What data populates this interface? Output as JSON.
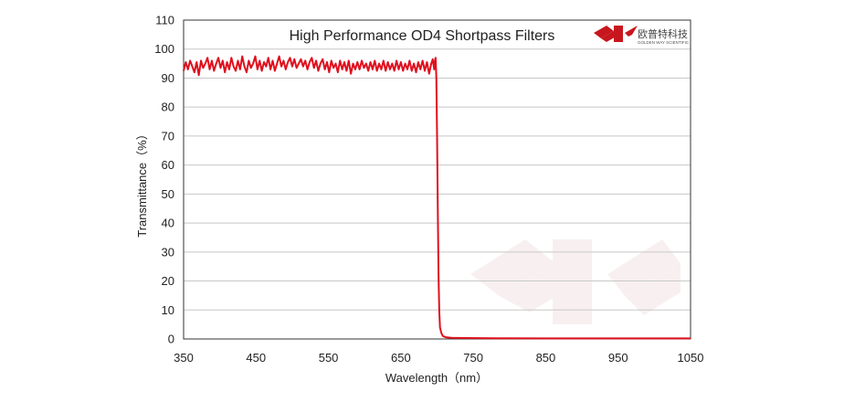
{
  "chart_data": {
    "type": "line",
    "title": "High Performance OD4 Shortpass  Filters",
    "xlabel": "Wavelength（nm）",
    "ylabel": "Transmittance（%）",
    "xlim": [
      350,
      1050
    ],
    "ylim": [
      0,
      110
    ],
    "xticks": [
      350,
      450,
      550,
      650,
      750,
      850,
      950,
      1050
    ],
    "yticks": [
      0,
      10,
      20,
      30,
      40,
      50,
      60,
      70,
      80,
      90,
      100,
      110
    ],
    "grid": true,
    "legend": "none",
    "series": [
      {
        "color": "#e0101e",
        "x": [
          350,
          353,
          356,
          359,
          362,
          365,
          368,
          371,
          374,
          377,
          380,
          383,
          386,
          389,
          392,
          395,
          398,
          401,
          404,
          407,
          410,
          413,
          416,
          419,
          422,
          425,
          428,
          431,
          434,
          437,
          440,
          443,
          446,
          449,
          452,
          455,
          458,
          461,
          464,
          467,
          470,
          473,
          476,
          479,
          482,
          485,
          488,
          491,
          494,
          497,
          500,
          503,
          506,
          509,
          512,
          515,
          518,
          521,
          524,
          527,
          530,
          533,
          536,
          539,
          542,
          545,
          548,
          551,
          554,
          557,
          560,
          563,
          566,
          569,
          572,
          575,
          578,
          581,
          584,
          587,
          590,
          593,
          596,
          599,
          602,
          605,
          608,
          611,
          614,
          617,
          620,
          623,
          626,
          629,
          632,
          635,
          638,
          641,
          644,
          647,
          650,
          653,
          656,
          659,
          662,
          665,
          668,
          671,
          674,
          677,
          680,
          683,
          686,
          689,
          692,
          694,
          696,
          697,
          698,
          699,
          700,
          701,
          702,
          703,
          704,
          706,
          708,
          712,
          720,
          740,
          780,
          850,
          950,
          1050
        ],
        "values": [
          92.5,
          95.5,
          93,
          96,
          94,
          92,
          95.5,
          91,
          96,
          93.5,
          95,
          97,
          93,
          96,
          92.5,
          95,
          97,
          93.5,
          96,
          92,
          95.5,
          93,
          97,
          94,
          92.5,
          96,
          93,
          97.5,
          94,
          92,
          96,
          93.5,
          95,
          97.5,
          93,
          96,
          92.5,
          95.5,
          94,
          97,
          93,
          96,
          92.5,
          95,
          97.5,
          94,
          96,
          93,
          95.5,
          97,
          94,
          96.5,
          93.5,
          95,
          96.5,
          94,
          96,
          93,
          95.5,
          97,
          93.5,
          96,
          92.5,
          95,
          96.5,
          93,
          95.5,
          92,
          96,
          93.5,
          95,
          92,
          96,
          93,
          95.5,
          92.5,
          96,
          91.5,
          95,
          93,
          95.5,
          93,
          96,
          93.5,
          95,
          92.5,
          95.5,
          93,
          96,
          92.5,
          95,
          93,
          96,
          92.5,
          95.5,
          93,
          95,
          92.5,
          96,
          93,
          95.5,
          92.5,
          95,
          93,
          96,
          92.5,
          95,
          92,
          95.5,
          93,
          96,
          92.5,
          95.5,
          91.5,
          95,
          96.5,
          93,
          96,
          97,
          90,
          70,
          45,
          22,
          10,
          4,
          2,
          1,
          0.6,
          0.4,
          0.3,
          0.25,
          0.2,
          0.2,
          0.2
        ]
      }
    ]
  },
  "logo": {
    "name_cn": "欧普特科技",
    "name_en": "GOLDEN WAY SCIENTIFIC"
  }
}
